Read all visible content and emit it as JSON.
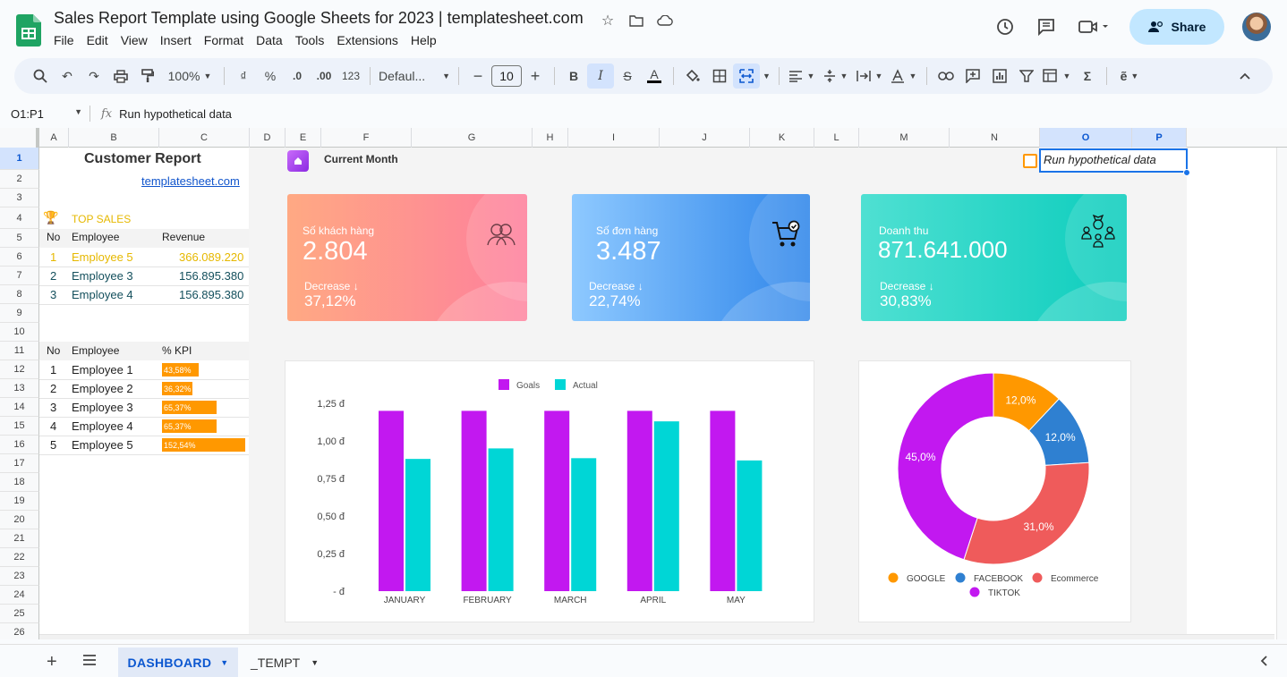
{
  "app": {
    "title": "Sales Report Template using Google Sheets for 2023 | templatesheet.com",
    "menu": [
      "File",
      "Edit",
      "View",
      "Insert",
      "Format",
      "Data",
      "Tools",
      "Extensions",
      "Help"
    ],
    "share_label": "Share"
  },
  "toolbar": {
    "zoom": "100%",
    "currency": "₫",
    "percent": "%",
    "dec_decrease": ".0",
    "dec_increase": ".00",
    "number_format": "123",
    "font": "Defaul...",
    "font_size": "10"
  },
  "formula_bar": {
    "cell_ref": "O1:P1",
    "fx": "fx",
    "content": "Run hypothetical data"
  },
  "columns": [
    "A",
    "B",
    "C",
    "D",
    "E",
    "F",
    "G",
    "H",
    "I",
    "J",
    "K",
    "L",
    "M",
    "N",
    "O",
    "P"
  ],
  "rows": [
    "1",
    "2",
    "3",
    "4",
    "5",
    "6",
    "7",
    "8",
    "9",
    "10",
    "11",
    "12",
    "13",
    "14",
    "15",
    "16",
    "17",
    "18",
    "19",
    "20",
    "21",
    "22",
    "23",
    "24",
    "25",
    "26"
  ],
  "sheet": {
    "customer_report": "Customer Report",
    "site_link": "templatesheet.com",
    "top_sales_label": "TOP SALES",
    "sales_headers": [
      "No",
      "Employee",
      "Revenue"
    ],
    "sales_rows": [
      {
        "no": "1",
        "employee": "Employee 5",
        "revenue": "366.089.220"
      },
      {
        "no": "2",
        "employee": "Employee 3",
        "revenue": "156.895.380"
      },
      {
        "no": "3",
        "employee": "Employee 4",
        "revenue": "156.895.380"
      }
    ],
    "kpi_headers": [
      "No",
      "Employee",
      "% KPI"
    ],
    "kpi_rows": [
      {
        "no": "1",
        "employee": "Employee 1",
        "kpi": "43,58%",
        "fraction": 0.4358
      },
      {
        "no": "2",
        "employee": "Employee 2",
        "kpi": "36,32%",
        "fraction": 0.3632
      },
      {
        "no": "3",
        "employee": "Employee 3",
        "kpi": "65,37%",
        "fraction": 0.6537
      },
      {
        "no": "4",
        "employee": "Employee 4",
        "kpi": "65,37%",
        "fraction": 0.6537
      },
      {
        "no": "5",
        "employee": "Employee 5",
        "kpi": "152,54%",
        "fraction": 1.0
      }
    ],
    "current_month": "Current Month",
    "run_hypothetical": "Run hypothetical data"
  },
  "cards": [
    {
      "label": "Số khách hàng",
      "value": "2.804",
      "trend": "Decrease ↓",
      "pct": "37,12%",
      "icon": "people-icon",
      "from": "#ffa983",
      "to": "#fe7f9c"
    },
    {
      "label": "Số đơn hàng",
      "value": "3.487",
      "trend": "Decrease ↓",
      "pct": "22,74%",
      "icon": "cart-icon",
      "from": "#8ec9ff",
      "to": "#2f86ea"
    },
    {
      "label": "Doanh thu",
      "value": "871.641.000",
      "trend": "Decrease ↓",
      "pct": "30,83%",
      "icon": "team-money-icon",
      "from": "#4fe0d2",
      "to": "#0ccdbd"
    }
  ],
  "chart_data": [
    {
      "type": "bar",
      "categories": [
        "JANUARY",
        "FEBRUARY",
        "MARCH",
        "APRIL",
        "MAY"
      ],
      "series": [
        {
          "name": "Goals",
          "color": "#c218f0",
          "values": [
            1.2,
            1.2,
            1.2,
            1.2,
            1.2
          ]
        },
        {
          "name": "Actual",
          "color": "#00d6d6",
          "values": [
            0.88,
            0.95,
            0.885,
            1.13,
            0.87
          ]
        }
      ],
      "y_ticks": [
        "1,25 đ",
        "1,00 đ",
        "0,75 đ",
        "0,50 đ",
        "0,25 đ",
        "-  đ"
      ],
      "ylim": [
        0,
        1.25
      ],
      "legend": "top",
      "grid": false
    },
    {
      "type": "pie",
      "donut": true,
      "labels": [
        "GOOGLE",
        "FACEBOOK",
        "Ecommerce",
        "TIKTOK"
      ],
      "values": [
        12.0,
        12.0,
        31.0,
        45.0
      ],
      "value_labels": [
        "12,0%",
        "12,0%",
        "31,0%",
        "45,0%"
      ],
      "colors": [
        "#ff9800",
        "#2f80d1",
        "#ef5b5b",
        "#c218f0"
      ],
      "legend": "bottom"
    }
  ],
  "tabs": {
    "active": "DASHBOARD",
    "other": "_TEMPT"
  }
}
